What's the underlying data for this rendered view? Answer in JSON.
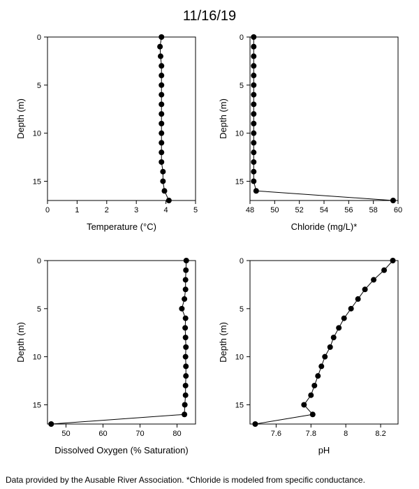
{
  "title": "11/16/19",
  "footer": "Data provided by the Ausable River Association. *Chloride is modeled from specific conductance.",
  "style": {
    "background_color": "#ffffff",
    "axis_color": "#000000",
    "point_color": "#000000",
    "line_color": "#000000",
    "text_color": "#000000",
    "title_fontsize": 20,
    "axis_label_fontsize": 13,
    "tick_fontsize": 11,
    "point_radius": 4,
    "line_width": 1,
    "axis_width": 1,
    "tick_length": 5
  },
  "y_axis_common": {
    "label": "Depth (m)",
    "lim": [
      17,
      0
    ],
    "ticks": [
      0,
      5,
      10,
      15
    ]
  },
  "panels": [
    {
      "id": "temperature",
      "xlabel": "Temperature (°C)",
      "xlim": [
        0,
        5
      ],
      "xticks": [
        0,
        1,
        2,
        3,
        4,
        5
      ],
      "depths": [
        0,
        1,
        2,
        3,
        4,
        5,
        6,
        7,
        8,
        9,
        10,
        11,
        12,
        13,
        14,
        15,
        16,
        17
      ],
      "values": [
        3.85,
        3.8,
        3.82,
        3.85,
        3.85,
        3.85,
        3.85,
        3.85,
        3.85,
        3.85,
        3.85,
        3.85,
        3.85,
        3.85,
        3.9,
        3.9,
        3.95,
        4.1
      ]
    },
    {
      "id": "chloride",
      "xlabel": "Chloride (mg/L)*",
      "xlim": [
        48,
        60
      ],
      "xticks": [
        48,
        50,
        52,
        54,
        56,
        58,
        60
      ],
      "depths": [
        0,
        1,
        2,
        3,
        4,
        5,
        6,
        7,
        8,
        9,
        10,
        11,
        12,
        13,
        14,
        15,
        16,
        17
      ],
      "values": [
        48.3,
        48.3,
        48.3,
        48.3,
        48.3,
        48.3,
        48.3,
        48.3,
        48.3,
        48.3,
        48.3,
        48.3,
        48.3,
        48.3,
        48.3,
        48.3,
        48.5,
        59.6
      ]
    },
    {
      "id": "do",
      "xlabel": "Dissolved Oxygen (% Saturation)",
      "xlim": [
        45,
        85
      ],
      "xticks": [
        50,
        60,
        70,
        80
      ],
      "depths": [
        0,
        1,
        2,
        3,
        4,
        5,
        6,
        7,
        8,
        9,
        10,
        11,
        12,
        13,
        14,
        15,
        16,
        17
      ],
      "values": [
        82.5,
        82.4,
        82.3,
        82.3,
        82.0,
        81.3,
        82.3,
        82.2,
        82.3,
        82.4,
        82.3,
        82.4,
        82.4,
        82.3,
        82.3,
        82.1,
        82.0,
        46.0
      ]
    },
    {
      "id": "ph",
      "xlabel": "pH",
      "xlim": [
        7.45,
        8.3
      ],
      "xticks": [
        7.6,
        7.8,
        8.0,
        8.2
      ],
      "depths": [
        0,
        1,
        2,
        3,
        4,
        5,
        6,
        7,
        8,
        9,
        10,
        11,
        12,
        13,
        14,
        15,
        16,
        17
      ],
      "values": [
        8.27,
        8.22,
        8.16,
        8.11,
        8.07,
        8.03,
        7.99,
        7.96,
        7.93,
        7.91,
        7.88,
        7.86,
        7.84,
        7.82,
        7.8,
        7.76,
        7.81,
        7.48
      ]
    }
  ]
}
